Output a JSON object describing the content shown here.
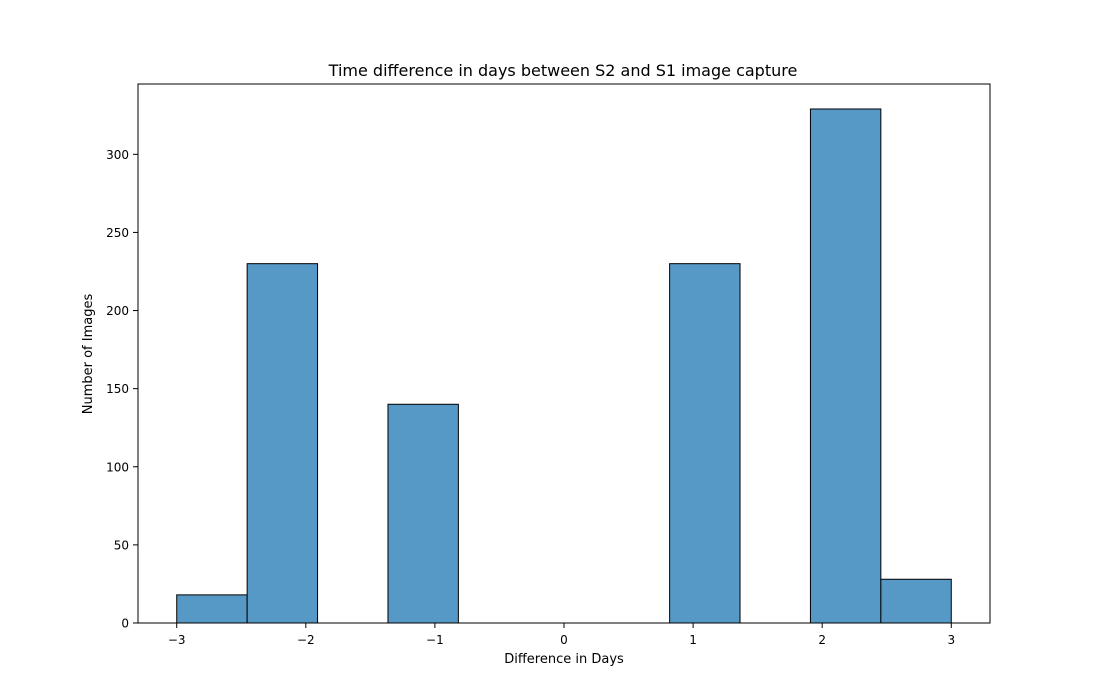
{
  "chart_data": {
    "type": "bar",
    "title": "Time difference in days between S2 and S1 image capture",
    "xlabel": "Difference in Days",
    "ylabel": "Number of Images",
    "xlim": [
      -3.3,
      3.3
    ],
    "ylim": [
      0,
      345
    ],
    "xticks": [
      -3,
      -2,
      -1,
      0,
      1,
      2,
      3
    ],
    "xtick_labels": [
      "−3",
      "−2",
      "−1",
      "0",
      "1",
      "2",
      "3"
    ],
    "yticks": [
      0,
      50,
      100,
      150,
      200,
      250,
      300
    ],
    "ytick_labels": [
      "0",
      "50",
      "100",
      "150",
      "200",
      "250",
      "300"
    ],
    "bin_edges": [
      -3.0,
      -2.454545,
      -1.909091,
      -1.363636,
      -0.818182,
      -0.272727,
      0.272727,
      0.818182,
      1.363636,
      1.909091,
      2.454545,
      3.0
    ],
    "values": [
      18,
      230,
      0,
      140,
      0,
      0,
      0,
      230,
      0,
      329,
      28
    ],
    "bar_color": "#5698c6",
    "edge_color": "#000000",
    "grid": false,
    "legend": "none"
  }
}
